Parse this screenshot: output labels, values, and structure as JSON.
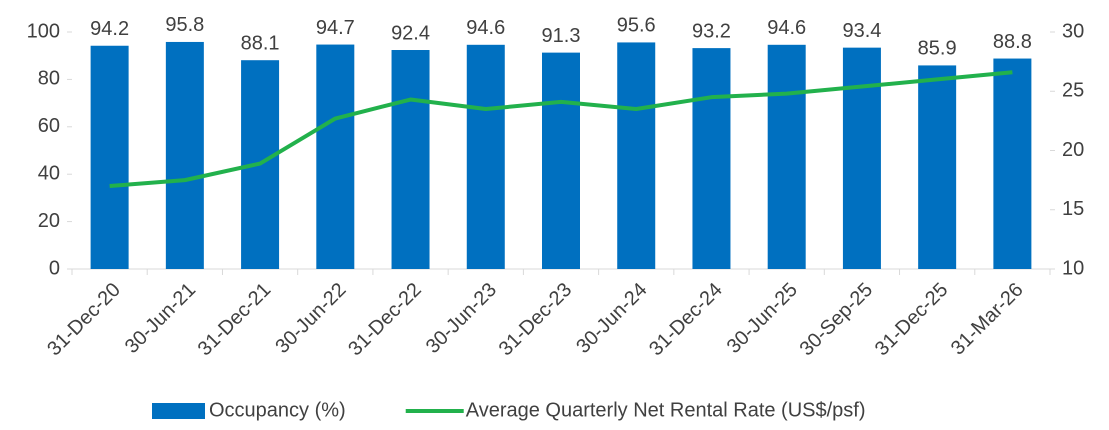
{
  "chart_data": {
    "type": "bar",
    "categories": [
      "31-Dec-20",
      "30-Jun-21",
      "31-Dec-21",
      "30-Jun-22",
      "31-Dec-22",
      "30-Jun-23",
      "31-Dec-23",
      "30-Jun-24",
      "31-Dec-24",
      "30-Jun-25",
      "30-Sep-25",
      "31-Dec-25",
      "31-Mar-26"
    ],
    "series": [
      {
        "name": "Occupancy (%)",
        "type": "bar",
        "color": "#0070c0",
        "values": [
          94.2,
          95.8,
          88.1,
          94.7,
          92.4,
          94.6,
          91.3,
          95.6,
          93.2,
          94.6,
          93.4,
          85.9,
          88.8
        ]
      },
      {
        "name": "Average Quarterly Net Rental Rate (US$/psf)",
        "type": "line",
        "axis": "y2",
        "color": "#22b14c",
        "values": [
          17.0,
          17.5,
          18.9,
          22.7,
          24.3,
          23.5,
          24.1,
          23.5,
          24.5,
          24.8,
          25.4,
          26.0,
          26.6
        ]
      }
    ],
    "ylim": [
      0,
      100
    ],
    "yticks": [
      0,
      20,
      40,
      60,
      80,
      100
    ],
    "y2lim": [
      10,
      30
    ],
    "y2ticks": [
      10,
      15,
      20,
      25,
      30
    ],
    "legend": "bottom"
  }
}
